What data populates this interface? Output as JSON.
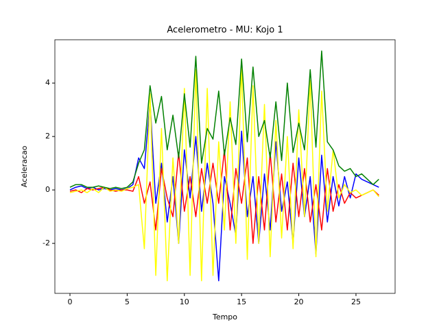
{
  "chart_data": {
    "type": "line",
    "title": "Acelerometro - MU: Kojo 1",
    "x_label": "Tempo",
    "y_label": "Aceleracao",
    "x": [
      0,
      0.5,
      1,
      1.5,
      2,
      2.5,
      3,
      3.5,
      4,
      4.5,
      5,
      5.5,
      6,
      6.5,
      7,
      7.5,
      8,
      8.5,
      9,
      9.5,
      10,
      10.5,
      11,
      11.5,
      12,
      12.5,
      13,
      13.5,
      14,
      14.5,
      15,
      15.5,
      16,
      16.5,
      17,
      17.5,
      18,
      18.5,
      19,
      19.5,
      20,
      20.5,
      21,
      21.5,
      22,
      22.5,
      23,
      23.5,
      24,
      24.5,
      25,
      25.5,
      26,
      26.5,
      27
    ],
    "series": [
      {
        "color": "#0000ff",
        "values": [
          0.0,
          0.1,
          0.15,
          0.05,
          0.1,
          0.0,
          0.05,
          0.0,
          0.05,
          0.0,
          0.05,
          0.2,
          1.2,
          0.8,
          3.3,
          -0.5,
          1.0,
          -1.2,
          0.5,
          -2.0,
          1.5,
          -0.3,
          2.0,
          -0.8,
          1.0,
          -0.5,
          -3.4,
          0.5,
          -0.5,
          -1.7,
          2.2,
          -1.0,
          0.5,
          -2.0,
          0.6,
          -1.5,
          1.8,
          -0.8,
          0.3,
          -2.0,
          1.2,
          -1.0,
          0.5,
          -2.4,
          1.3,
          -1.2,
          0.5,
          -0.6,
          0.5,
          -0.3,
          0.6,
          0.4,
          0.3,
          0.2,
          0.1
        ]
      },
      {
        "color": "#ff0000",
        "values": [
          -0.05,
          0.0,
          -0.1,
          0.05,
          0.0,
          0.05,
          0.1,
          0.0,
          -0.05,
          0.0,
          0.0,
          -0.05,
          0.5,
          -0.5,
          0.3,
          -1.5,
          0.8,
          -0.3,
          -1.0,
          1.4,
          -0.8,
          0.5,
          -1.0,
          0.8,
          -0.5,
          1.0,
          -0.5,
          1.5,
          -1.5,
          0.8,
          -0.5,
          1.2,
          -2.0,
          0.5,
          -1.5,
          1.4,
          -1.2,
          0.6,
          -1.5,
          1.0,
          -1.0,
          0.8,
          -1.2,
          0.2,
          -1.5,
          0.8,
          -0.8,
          0.2,
          -0.5,
          -0.1,
          -0.3,
          -0.2,
          -0.1,
          0.0,
          -0.2
        ]
      },
      {
        "color": "#ffff00",
        "values": [
          -0.1,
          -0.05,
          0.0,
          -0.1,
          0.05,
          -0.1,
          0.1,
          -0.05,
          0.0,
          -0.05,
          0.05,
          0.1,
          0.2,
          -2.2,
          3.6,
          -3.2,
          2.3,
          -3.4,
          1.2,
          -2.0,
          3.8,
          -3.2,
          4.5,
          -3.4,
          3.8,
          -3.2,
          1.8,
          -1.5,
          3.3,
          -2.0,
          4.6,
          -2.6,
          3.9,
          -2.0,
          3.2,
          -2.5,
          2.6,
          -1.8,
          2.0,
          -2.2,
          3.0,
          -1.0,
          4.1,
          -2.5,
          3.7,
          -0.8,
          1.5,
          -0.3,
          0.2,
          -0.1,
          0.0,
          -0.2,
          -0.1,
          0.0,
          -0.25
        ]
      },
      {
        "color": "#008000",
        "values": [
          0.1,
          0.2,
          0.2,
          0.1,
          0.1,
          0.15,
          0.1,
          0.05,
          0.1,
          0.05,
          0.1,
          0.3,
          1.0,
          1.5,
          3.9,
          2.5,
          3.5,
          1.5,
          2.8,
          1.2,
          3.6,
          1.6,
          5.0,
          1.0,
          2.3,
          1.9,
          3.7,
          1.3,
          2.7,
          1.7,
          4.9,
          1.8,
          4.6,
          2.0,
          2.6,
          1.2,
          3.3,
          1.1,
          4.0,
          1.4,
          2.5,
          1.5,
          4.5,
          1.6,
          5.2,
          1.8,
          1.5,
          0.9,
          0.7,
          0.8,
          0.5,
          0.6,
          0.4,
          0.2,
          0.4
        ]
      }
    ],
    "xlim": [
      -1.32,
      28.42
    ],
    "xticks": [
      0,
      5,
      10,
      15,
      20,
      25
    ],
    "ylim": [
      -3.87,
      5.62
    ],
    "yticks": [
      -2,
      0,
      2,
      4
    ],
    "grid": false
  }
}
